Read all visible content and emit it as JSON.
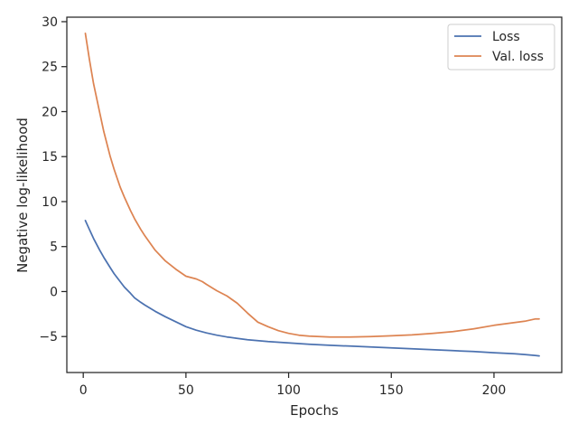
{
  "chart_data": {
    "type": "line",
    "title": "",
    "xlabel": "Epochs",
    "ylabel": "Negative log-likelihood",
    "xlim": [
      -8,
      233
    ],
    "ylim": [
      -9,
      30.5
    ],
    "xticks": [
      0,
      50,
      100,
      150,
      200
    ],
    "yticks": [
      -5,
      0,
      5,
      10,
      15,
      20,
      25,
      30
    ],
    "grid": false,
    "legend": "top-right",
    "series": [
      {
        "name": "Loss",
        "color": "#4c72b0",
        "points": [
          [
            1,
            7.9
          ],
          [
            3,
            6.9
          ],
          [
            5,
            5.9
          ],
          [
            8,
            4.6
          ],
          [
            10,
            3.8
          ],
          [
            13,
            2.7
          ],
          [
            15,
            2.0
          ],
          [
            18,
            1.1
          ],
          [
            20,
            0.5
          ],
          [
            23,
            -0.2
          ],
          [
            25,
            -0.7
          ],
          [
            28,
            -1.2
          ],
          [
            30,
            -1.5
          ],
          [
            35,
            -2.2
          ],
          [
            40,
            -2.8
          ],
          [
            45,
            -3.35
          ],
          [
            50,
            -3.9
          ],
          [
            55,
            -4.3
          ],
          [
            60,
            -4.6
          ],
          [
            65,
            -4.85
          ],
          [
            70,
            -5.05
          ],
          [
            75,
            -5.2
          ],
          [
            80,
            -5.35
          ],
          [
            85,
            -5.45
          ],
          [
            90,
            -5.55
          ],
          [
            100,
            -5.7
          ],
          [
            110,
            -5.85
          ],
          [
            120,
            -5.97
          ],
          [
            130,
            -6.07
          ],
          [
            140,
            -6.17
          ],
          [
            150,
            -6.27
          ],
          [
            160,
            -6.37
          ],
          [
            170,
            -6.47
          ],
          [
            180,
            -6.57
          ],
          [
            190,
            -6.67
          ],
          [
            200,
            -6.8
          ],
          [
            210,
            -6.92
          ],
          [
            215,
            -7.0
          ],
          [
            220,
            -7.1
          ],
          [
            222,
            -7.15
          ]
        ]
      },
      {
        "name": "Val. loss",
        "color": "#dd8452",
        "points": [
          [
            1,
            28.7
          ],
          [
            3,
            25.8
          ],
          [
            5,
            23.1
          ],
          [
            8,
            19.9
          ],
          [
            10,
            17.8
          ],
          [
            13,
            15.1
          ],
          [
            15,
            13.6
          ],
          [
            18,
            11.6
          ],
          [
            20,
            10.5
          ],
          [
            23,
            9.0
          ],
          [
            25,
            8.1
          ],
          [
            28,
            6.9
          ],
          [
            30,
            6.2
          ],
          [
            35,
            4.6
          ],
          [
            40,
            3.4
          ],
          [
            45,
            2.5
          ],
          [
            50,
            1.7
          ],
          [
            55,
            1.4
          ],
          [
            58,
            1.1
          ],
          [
            60,
            0.8
          ],
          [
            65,
            0.1
          ],
          [
            70,
            -0.5
          ],
          [
            75,
            -1.3
          ],
          [
            80,
            -2.4
          ],
          [
            85,
            -3.4
          ],
          [
            90,
            -3.9
          ],
          [
            95,
            -4.35
          ],
          [
            100,
            -4.65
          ],
          [
            105,
            -4.85
          ],
          [
            110,
            -4.95
          ],
          [
            120,
            -5.05
          ],
          [
            130,
            -5.05
          ],
          [
            140,
            -5.0
          ],
          [
            150,
            -4.92
          ],
          [
            160,
            -4.82
          ],
          [
            170,
            -4.65
          ],
          [
            180,
            -4.45
          ],
          [
            190,
            -4.15
          ],
          [
            200,
            -3.75
          ],
          [
            210,
            -3.45
          ],
          [
            215,
            -3.3
          ],
          [
            220,
            -3.05
          ],
          [
            222,
            -3.05
          ]
        ]
      }
    ]
  }
}
